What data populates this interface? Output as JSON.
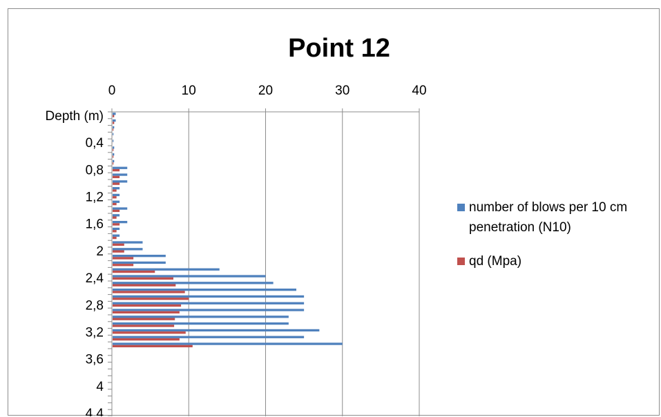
{
  "chart_data": {
    "type": "bar",
    "orientation": "horizontal",
    "title": "Point 12",
    "xlabel": "",
    "ylabel": "",
    "x_axis_position": "top",
    "xlim": [
      0,
      40
    ],
    "x_ticks": [
      "0",
      "10",
      "20",
      "30",
      "40"
    ],
    "y_ticks": [
      "Depth (m)",
      "0,4",
      "0,8",
      "1,2",
      "1,6",
      "2",
      "2,4",
      "2,8",
      "3,2",
      "3,6",
      "4",
      "4,4"
    ],
    "categories": [
      "0",
      "0,1",
      "0,2",
      "0,3",
      "0,4",
      "0,5",
      "0,6",
      "0,7",
      "0,8",
      "0,9",
      "1",
      "1,1",
      "1,2",
      "1,3",
      "1,4",
      "1,5",
      "1,6",
      "1,7",
      "1,8",
      "1,9",
      "2",
      "2,1",
      "2,2",
      "2,3",
      "2,4",
      "2,5",
      "2,6",
      "2,7",
      "2,8",
      "2,9",
      "3",
      "3,1",
      "3,2",
      "3,3",
      "3,4",
      "3,5",
      "3,6",
      "3,7",
      "3,8",
      "3,9",
      "4",
      "4,1",
      "4,2",
      "4,3",
      "4,4"
    ],
    "series": [
      {
        "name": "number of blows per 10 cm penetration (N10)",
        "color": "#4f81bd",
        "values": [
          0.5,
          0.5,
          0.3,
          0.2,
          0.2,
          0.3,
          0.3,
          0.3,
          2,
          2,
          2,
          1,
          1,
          1,
          2,
          1,
          2,
          1,
          1,
          4,
          4,
          7,
          7,
          14,
          20,
          21,
          24,
          25,
          25,
          25,
          23,
          23,
          27,
          25,
          30,
          0,
          0,
          0,
          0,
          0,
          0,
          0,
          0,
          0,
          0
        ]
      },
      {
        "name": "qd (Mpa)",
        "color": "#c0504d",
        "values": [
          0.3,
          0.3,
          0.2,
          0.1,
          0.1,
          0.2,
          0.2,
          0.2,
          1,
          1,
          1,
          0.6,
          0.6,
          0.6,
          1,
          0.6,
          1,
          0.6,
          0.6,
          1.6,
          1.6,
          2.8,
          2.8,
          5.6,
          8,
          8.3,
          9.5,
          10,
          9,
          8.8,
          8.2,
          8.1,
          9.6,
          8.8,
          10.5,
          0,
          0,
          0,
          0,
          0,
          0,
          0,
          0,
          0,
          0
        ]
      }
    ],
    "grid": "vertical major gridlines",
    "legend_position": "right"
  }
}
